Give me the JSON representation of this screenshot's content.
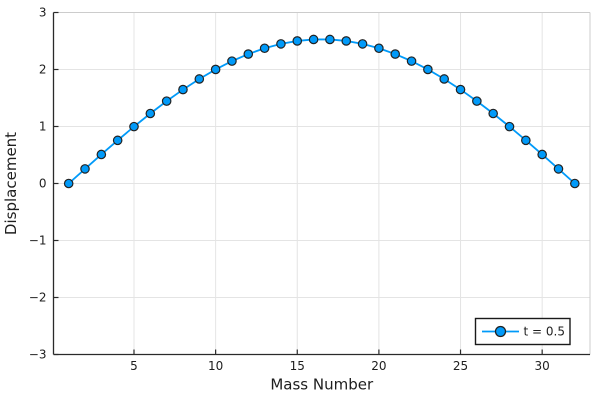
{
  "chart_data": {
    "type": "line",
    "title": "",
    "xlabel": "Mass Number",
    "ylabel": "Displacement",
    "xlim": [
      0.07,
      32.93
    ],
    "ylim": [
      -3,
      3
    ],
    "xticks": [
      5,
      10,
      15,
      20,
      25,
      30
    ],
    "xtick_labels": [
      "5",
      "10",
      "15",
      "20",
      "25",
      "30"
    ],
    "yticks": [
      -3,
      -2,
      -1,
      0,
      1,
      2,
      3
    ],
    "ytick_labels": [
      "−3",
      "−2",
      "−1",
      "0",
      "1",
      "2",
      "3"
    ],
    "grid": true,
    "legend_position": "bottom-right",
    "series": [
      {
        "name": "t = 0.5",
        "marker": "circle",
        "color": "#009af9",
        "marker_stroke": "#222222",
        "x": [
          1,
          2,
          3,
          4,
          5,
          6,
          7,
          8,
          9,
          10,
          11,
          12,
          13,
          14,
          15,
          16,
          17,
          18,
          19,
          20,
          21,
          22,
          23,
          24,
          25,
          26,
          27,
          28,
          29,
          30,
          31,
          32
        ],
        "y": [
          0.0,
          0.256,
          0.509,
          0.757,
          0.998,
          1.228,
          1.445,
          1.648,
          1.834,
          2.001,
          2.147,
          2.271,
          2.373,
          2.449,
          2.501,
          2.527,
          2.527,
          2.501,
          2.449,
          2.373,
          2.271,
          2.147,
          2.001,
          1.834,
          1.648,
          1.445,
          1.228,
          0.998,
          0.757,
          0.509,
          0.256,
          0.0
        ]
      }
    ],
    "colors": {
      "background": "#ffffff",
      "grid": "#e4e4e4",
      "frame_light": "#cccccc",
      "axis": "#2a2a2a",
      "text": "#1e1e1e",
      "legend_border": "#1a1a1a"
    }
  }
}
